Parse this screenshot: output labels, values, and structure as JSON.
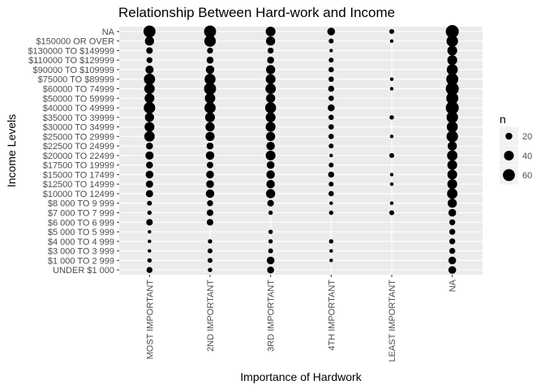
{
  "chart_data": {
    "type": "scatter",
    "title": "Relationship Between Hard-work and Income",
    "xlabel": "Importance of Hardwork",
    "ylabel": "Income Levels",
    "x_categories": [
      "MOST IMPORTANT",
      "2ND IMPORTANT",
      "3RD IMPORTANT",
      "4TH IMPORTANT",
      "LEAST IMPORTANT",
      "NA"
    ],
    "y_categories": [
      "NA",
      "$150000 OR OVER",
      "$130000 TO $149999",
      "$110000 TO $129999",
      "$90000 TO $109999",
      "$75000 TO $89999",
      "$60000 TO 74999",
      "$50000 TO 59999",
      "$40000 TO 49999",
      "$35000 TO 39999",
      "$30000 TO 34999",
      "$25000 TO 29999",
      "$22500 TO 24999",
      "$20000 TO 22499",
      "$17500 TO 19999",
      "$15000 TO 17499",
      "$12500 TO 14999",
      "$10000 TO 12499",
      "$8 000 TO 9 999",
      "$7 000 TO 7 999",
      "$6 000 TO 6 999",
      "$5 000 TO 5 999",
      "$4 000 TO 4 999",
      "$3 000 TO 3 999",
      "$1 000 TO 2 999",
      "UNDER $1 000"
    ],
    "size_legend": {
      "title": "n",
      "values": [
        20,
        40,
        60
      ],
      "labels": [
        "20",
        "40",
        "60"
      ]
    },
    "grid": true,
    "legend_position": "right",
    "points": [
      {
        "x": "MOST IMPORTANT",
        "y": "NA",
        "n": 60
      },
      {
        "x": "MOST IMPORTANT",
        "y": "$150000 OR OVER",
        "n": 35
      },
      {
        "x": "MOST IMPORTANT",
        "y": "$130000 TO $149999",
        "n": 18
      },
      {
        "x": "MOST IMPORTANT",
        "y": "$110000 TO $129999",
        "n": 15
      },
      {
        "x": "MOST IMPORTANT",
        "y": "$90000 TO $109999",
        "n": 28
      },
      {
        "x": "MOST IMPORTANT",
        "y": "$75000 TO $89999",
        "n": 52
      },
      {
        "x": "MOST IMPORTANT",
        "y": "$60000 TO 74999",
        "n": 45
      },
      {
        "x": "MOST IMPORTANT",
        "y": "$50000 TO 59999",
        "n": 40
      },
      {
        "x": "MOST IMPORTANT",
        "y": "$40000 TO 49999",
        "n": 55
      },
      {
        "x": "MOST IMPORTANT",
        "y": "$35000 TO 39999",
        "n": 35
      },
      {
        "x": "MOST IMPORTANT",
        "y": "$30000 TO 34999",
        "n": 40
      },
      {
        "x": "MOST IMPORTANT",
        "y": "$25000 TO 29999",
        "n": 45
      },
      {
        "x": "MOST IMPORTANT",
        "y": "$22500 TO 24999",
        "n": 20
      },
      {
        "x": "MOST IMPORTANT",
        "y": "$20000 TO 22499",
        "n": 28
      },
      {
        "x": "MOST IMPORTANT",
        "y": "$17500 TO 19999",
        "n": 20
      },
      {
        "x": "MOST IMPORTANT",
        "y": "$15000 TO 17499",
        "n": 25
      },
      {
        "x": "MOST IMPORTANT",
        "y": "$12500 TO 14999",
        "n": 22
      },
      {
        "x": "MOST IMPORTANT",
        "y": "$10000 TO 12499",
        "n": 22
      },
      {
        "x": "MOST IMPORTANT",
        "y": "$8 000 TO 9 999",
        "n": 10
      },
      {
        "x": "MOST IMPORTANT",
        "y": "$7 000 TO 7 999",
        "n": 8
      },
      {
        "x": "MOST IMPORTANT",
        "y": "$6 000 TO 6 999",
        "n": 18
      },
      {
        "x": "MOST IMPORTANT",
        "y": "$5 000 TO 5 999",
        "n": 3
      },
      {
        "x": "MOST IMPORTANT",
        "y": "$4 000 TO 4 999",
        "n": 5
      },
      {
        "x": "MOST IMPORTANT",
        "y": "$3 000 TO 3 999",
        "n": 5
      },
      {
        "x": "MOST IMPORTANT",
        "y": "$1 000 TO 2 999",
        "n": 8
      },
      {
        "x": "MOST IMPORTANT",
        "y": "UNDER $1 000",
        "n": 15
      },
      {
        "x": "2ND IMPORTANT",
        "y": "NA",
        "n": 60
      },
      {
        "x": "2ND IMPORTANT",
        "y": "$150000 OR OVER",
        "n": 55
      },
      {
        "x": "2ND IMPORTANT",
        "y": "$130000 TO $149999",
        "n": 15
      },
      {
        "x": "2ND IMPORTANT",
        "y": "$110000 TO $129999",
        "n": 20
      },
      {
        "x": "2ND IMPORTANT",
        "y": "$90000 TO $109999",
        "n": 30
      },
      {
        "x": "2ND IMPORTANT",
        "y": "$75000 TO $89999",
        "n": 50
      },
      {
        "x": "2ND IMPORTANT",
        "y": "$60000 TO 74999",
        "n": 60
      },
      {
        "x": "2ND IMPORTANT",
        "y": "$50000 TO 59999",
        "n": 45
      },
      {
        "x": "2ND IMPORTANT",
        "y": "$40000 TO 49999",
        "n": 52
      },
      {
        "x": "2ND IMPORTANT",
        "y": "$35000 TO 39999",
        "n": 40
      },
      {
        "x": "2ND IMPORTANT",
        "y": "$30000 TO 34999",
        "n": 35
      },
      {
        "x": "2ND IMPORTANT",
        "y": "$25000 TO 29999",
        "n": 35
      },
      {
        "x": "2ND IMPORTANT",
        "y": "$22500 TO 24999",
        "n": 20
      },
      {
        "x": "2ND IMPORTANT",
        "y": "$20000 TO 22499",
        "n": 30
      },
      {
        "x": "2ND IMPORTANT",
        "y": "$17500 TO 19999",
        "n": 18
      },
      {
        "x": "2ND IMPORTANT",
        "y": "$15000 TO 17499",
        "n": 25
      },
      {
        "x": "2ND IMPORTANT",
        "y": "$12500 TO 14999",
        "n": 25
      },
      {
        "x": "2ND IMPORTANT",
        "y": "$10000 TO 12499",
        "n": 30
      },
      {
        "x": "2ND IMPORTANT",
        "y": "$8 000 TO 9 999",
        "n": 15
      },
      {
        "x": "2ND IMPORTANT",
        "y": "$7 000 TO 7 999",
        "n": 18
      },
      {
        "x": "2ND IMPORTANT",
        "y": "$6 000 TO 6 999",
        "n": 18
      },
      {
        "x": "2ND IMPORTANT",
        "y": "$4 000 TO 4 999",
        "n": 8
      },
      {
        "x": "2ND IMPORTANT",
        "y": "$3 000 TO 3 999",
        "n": 10
      },
      {
        "x": "2ND IMPORTANT",
        "y": "$1 000 TO 2 999",
        "n": 10
      },
      {
        "x": "2ND IMPORTANT",
        "y": "UNDER $1 000",
        "n": 8
      },
      {
        "x": "3RD IMPORTANT",
        "y": "NA",
        "n": 40
      },
      {
        "x": "3RD IMPORTANT",
        "y": "$150000 OR OVER",
        "n": 35
      },
      {
        "x": "3RD IMPORTANT",
        "y": "$130000 TO $149999",
        "n": 15
      },
      {
        "x": "3RD IMPORTANT",
        "y": "$110000 TO $129999",
        "n": 20
      },
      {
        "x": "3RD IMPORTANT",
        "y": "$90000 TO $109999",
        "n": 35
      },
      {
        "x": "3RD IMPORTANT",
        "y": "$75000 TO $89999",
        "n": 40
      },
      {
        "x": "3RD IMPORTANT",
        "y": "$60000 TO 74999",
        "n": 45
      },
      {
        "x": "3RD IMPORTANT",
        "y": "$50000 TO 59999",
        "n": 35
      },
      {
        "x": "3RD IMPORTANT",
        "y": "$40000 TO 49999",
        "n": 50
      },
      {
        "x": "3RD IMPORTANT",
        "y": "$35000 TO 39999",
        "n": 40
      },
      {
        "x": "3RD IMPORTANT",
        "y": "$30000 TO 34999",
        "n": 40
      },
      {
        "x": "3RD IMPORTANT",
        "y": "$25000 TO 29999",
        "n": 35
      },
      {
        "x": "3RD IMPORTANT",
        "y": "$22500 TO 24999",
        "n": 30
      },
      {
        "x": "3RD IMPORTANT",
        "y": "$20000 TO 22499",
        "n": 40
      },
      {
        "x": "3RD IMPORTANT",
        "y": "$17500 TO 19999",
        "n": 25
      },
      {
        "x": "3RD IMPORTANT",
        "y": "$15000 TO 17499",
        "n": 30
      },
      {
        "x": "3RD IMPORTANT",
        "y": "$12500 TO 14999",
        "n": 30
      },
      {
        "x": "3RD IMPORTANT",
        "y": "$10000 TO 12499",
        "n": 35
      },
      {
        "x": "3RD IMPORTANT",
        "y": "$8 000 TO 9 999",
        "n": 18
      },
      {
        "x": "3RD IMPORTANT",
        "y": "$7 000 TO 7 999",
        "n": 8
      },
      {
        "x": "3RD IMPORTANT",
        "y": "$5 000 TO 5 999",
        "n": 8
      },
      {
        "x": "3RD IMPORTANT",
        "y": "$4 000 TO 4 999",
        "n": 8
      },
      {
        "x": "3RD IMPORTANT",
        "y": "$3 000 TO 3 999",
        "n": 10
      },
      {
        "x": "3RD IMPORTANT",
        "y": "$1 000 TO 2 999",
        "n": 25
      },
      {
        "x": "3RD IMPORTANT",
        "y": "UNDER $1 000",
        "n": 20
      },
      {
        "x": "4TH IMPORTANT",
        "y": "NA",
        "n": 25
      },
      {
        "x": "4TH IMPORTANT",
        "y": "$150000 OR OVER",
        "n": 10
      },
      {
        "x": "4TH IMPORTANT",
        "y": "$130000 TO $149999",
        "n": 5
      },
      {
        "x": "4TH IMPORTANT",
        "y": "$110000 TO $129999",
        "n": 10
      },
      {
        "x": "4TH IMPORTANT",
        "y": "$90000 TO $109999",
        "n": 12
      },
      {
        "x": "4TH IMPORTANT",
        "y": "$75000 TO $89999",
        "n": 12
      },
      {
        "x": "4TH IMPORTANT",
        "y": "$60000 TO 74999",
        "n": 15
      },
      {
        "x": "4TH IMPORTANT",
        "y": "$50000 TO 59999",
        "n": 12
      },
      {
        "x": "4TH IMPORTANT",
        "y": "$40000 TO 49999",
        "n": 20
      },
      {
        "x": "4TH IMPORTANT",
        "y": "$35000 TO 39999",
        "n": 12
      },
      {
        "x": "4TH IMPORTANT",
        "y": "$30000 TO 34999",
        "n": 12
      },
      {
        "x": "4TH IMPORTANT",
        "y": "$25000 TO 29999",
        "n": 12
      },
      {
        "x": "4TH IMPORTANT",
        "y": "$22500 TO 24999",
        "n": 10
      },
      {
        "x": "4TH IMPORTANT",
        "y": "$20000 TO 22499",
        "n": 5
      },
      {
        "x": "4TH IMPORTANT",
        "y": "$17500 TO 19999",
        "n": 10
      },
      {
        "x": "4TH IMPORTANT",
        "y": "$15000 TO 17499",
        "n": 15
      },
      {
        "x": "4TH IMPORTANT",
        "y": "$12500 TO 14999",
        "n": 10
      },
      {
        "x": "4TH IMPORTANT",
        "y": "$10000 TO 12499",
        "n": 12
      },
      {
        "x": "4TH IMPORTANT",
        "y": "$8 000 TO 9 999",
        "n": 5
      },
      {
        "x": "4TH IMPORTANT",
        "y": "$7 000 TO 7 999",
        "n": 8
      },
      {
        "x": "4TH IMPORTANT",
        "y": "$4 000 TO 4 999",
        "n": 8
      },
      {
        "x": "4TH IMPORTANT",
        "y": "$3 000 TO 3 999",
        "n": 5
      },
      {
        "x": "4TH IMPORTANT",
        "y": "$1 000 TO 2 999",
        "n": 5
      },
      {
        "x": "LEAST IMPORTANT",
        "y": "NA",
        "n": 10
      },
      {
        "x": "LEAST IMPORTANT",
        "y": "$150000 OR OVER",
        "n": 5
      },
      {
        "x": "LEAST IMPORTANT",
        "y": "$75000 TO $89999",
        "n": 5
      },
      {
        "x": "LEAST IMPORTANT",
        "y": "$60000 TO 74999",
        "n": 5
      },
      {
        "x": "LEAST IMPORTANT",
        "y": "$35000 TO 39999",
        "n": 8
      },
      {
        "x": "LEAST IMPORTANT",
        "y": "$25000 TO 29999",
        "n": 4
      },
      {
        "x": "LEAST IMPORTANT",
        "y": "$20000 TO 22499",
        "n": 10
      },
      {
        "x": "LEAST IMPORTANT",
        "y": "$15000 TO 17499",
        "n": 4
      },
      {
        "x": "LEAST IMPORTANT",
        "y": "$12500 TO 14999",
        "n": 4
      },
      {
        "x": "LEAST IMPORTANT",
        "y": "$8 000 TO 9 999",
        "n": 4
      },
      {
        "x": "LEAST IMPORTANT",
        "y": "$7 000 TO 7 999",
        "n": 10
      },
      {
        "x": "NA",
        "y": "NA",
        "n": 70
      },
      {
        "x": "NA",
        "y": "$150000 OR OVER",
        "n": 55
      },
      {
        "x": "NA",
        "y": "$130000 TO $149999",
        "n": 40
      },
      {
        "x": "NA",
        "y": "$110000 TO $129999",
        "n": 40
      },
      {
        "x": "NA",
        "y": "$90000 TO $109999",
        "n": 50
      },
      {
        "x": "NA",
        "y": "$75000 TO $89999",
        "n": 60
      },
      {
        "x": "NA",
        "y": "$60000 TO 74999",
        "n": 70
      },
      {
        "x": "NA",
        "y": "$50000 TO 59999",
        "n": 60
      },
      {
        "x": "NA",
        "y": "$40000 TO 49999",
        "n": 70
      },
      {
        "x": "NA",
        "y": "$35000 TO 39999",
        "n": 55
      },
      {
        "x": "NA",
        "y": "$30000 TO 34999",
        "n": 50
      },
      {
        "x": "NA",
        "y": "$25000 TO 29999",
        "n": 55
      },
      {
        "x": "NA",
        "y": "$22500 TO 24999",
        "n": 35
      },
      {
        "x": "NA",
        "y": "$20000 TO 22499",
        "n": 45
      },
      {
        "x": "NA",
        "y": "$17500 TO 19999",
        "n": 40
      },
      {
        "x": "NA",
        "y": "$15000 TO 17499",
        "n": 40
      },
      {
        "x": "NA",
        "y": "$12500 TO 14999",
        "n": 40
      },
      {
        "x": "NA",
        "y": "$10000 TO 12499",
        "n": 45
      },
      {
        "x": "NA",
        "y": "$8 000 TO 9 999",
        "n": 35
      },
      {
        "x": "NA",
        "y": "$7 000 TO 7 999",
        "n": 25
      },
      {
        "x": "NA",
        "y": "$6 000 TO 6 999",
        "n": 15
      },
      {
        "x": "NA",
        "y": "$5 000 TO 5 999",
        "n": 15
      },
      {
        "x": "NA",
        "y": "$4 000 TO 4 999",
        "n": 15
      },
      {
        "x": "NA",
        "y": "$3 000 TO 3 999",
        "n": 15
      },
      {
        "x": "NA",
        "y": "$1 000 TO 2 999",
        "n": 25
      },
      {
        "x": "NA",
        "y": "UNDER $1 000",
        "n": 25
      }
    ]
  }
}
